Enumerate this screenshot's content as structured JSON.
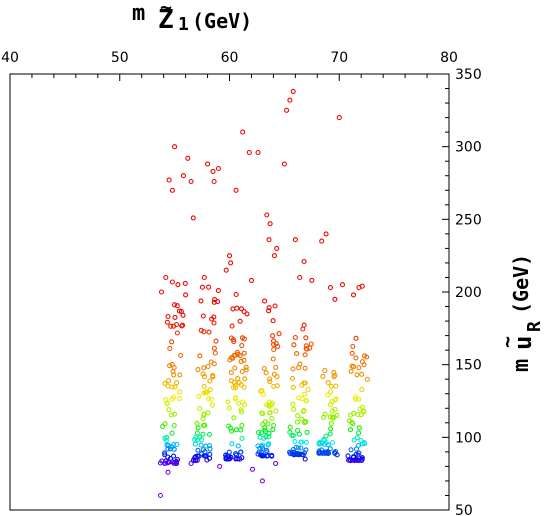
{
  "chart_data": {
    "type": "scatter",
    "title": "",
    "xlabel": {
      "base": "m",
      "symbol": "Z",
      "subscript": "1",
      "unit": "(GeV)"
    },
    "ylabel": {
      "base": "m",
      "symbol": "u",
      "subscript": "R",
      "unit": "(GeV)"
    },
    "xlim": [
      40,
      80
    ],
    "ylim": [
      50,
      350
    ],
    "x_ticks": [
      "40",
      "50",
      "60",
      "70",
      "80"
    ],
    "y_ticks": [
      "50",
      "100",
      "150",
      "200",
      "250",
      "300",
      "350"
    ],
    "x_axis_position": "top",
    "y_axis_position": "right",
    "grid": false,
    "legend": "none",
    "marker": "open-circle",
    "color_scale": "rainbow by y: violet (low) to red (high)",
    "band_centers_x": [
      54.5,
      57.5,
      60.5,
      63.5,
      66.5,
      69.0,
      71.5
    ],
    "points": [
      [
        53.7,
        60
      ],
      [
        63.0,
        70
      ],
      [
        54.5,
        277
      ],
      [
        54.8,
        270
      ],
      [
        55.0,
        300
      ],
      [
        55.8,
        280
      ],
      [
        56.2,
        292
      ],
      [
        56.5,
        276
      ],
      [
        56.7,
        251
      ],
      [
        58.0,
        288
      ],
      [
        58.5,
        283
      ],
      [
        58.6,
        276
      ],
      [
        59.0,
        285
      ],
      [
        60.1,
        220
      ],
      [
        60.6,
        270
      ],
      [
        61.2,
        310
      ],
      [
        61.8,
        296
      ],
      [
        62.6,
        296
      ],
      [
        63.4,
        253
      ],
      [
        63.6,
        236
      ],
      [
        63.7,
        247
      ],
      [
        64.1,
        225
      ],
      [
        64.3,
        230
      ],
      [
        65.0,
        288
      ],
      [
        65.2,
        325
      ],
      [
        65.5,
        332
      ],
      [
        65.8,
        338
      ],
      [
        66.0,
        236
      ],
      [
        66.4,
        210
      ],
      [
        66.8,
        221
      ],
      [
        67.5,
        208
      ],
      [
        68.4,
        235
      ],
      [
        68.8,
        240
      ],
      [
        69.2,
        203
      ],
      [
        69.6,
        195
      ],
      [
        70.0,
        320
      ],
      [
        70.3,
        205
      ],
      [
        71.3,
        198
      ],
      [
        71.8,
        203
      ],
      [
        72.1,
        204
      ],
      [
        62.0,
        208
      ],
      [
        59.7,
        215
      ],
      [
        57.7,
        210
      ],
      [
        60.0,
        225
      ],
      [
        55.3,
        205
      ],
      [
        54.2,
        210
      ],
      [
        53.8,
        200
      ],
      [
        56.0,
        198
      ],
      [
        54.4,
        76
      ],
      [
        56.5,
        82
      ],
      [
        59.1,
        80
      ],
      [
        62.1,
        78
      ],
      [
        64.2,
        82
      ],
      [
        66.9,
        85
      ],
      [
        69.8,
        88
      ],
      [
        72.1,
        86
      ]
    ],
    "clusters": [
      {
        "x": 54.5,
        "ymin": 82,
        "ymax": 208,
        "n": 80
      },
      {
        "x": 57.5,
        "ymin": 84,
        "ymax": 205,
        "n": 80
      },
      {
        "x": 60.4,
        "ymin": 85,
        "ymax": 200,
        "n": 80
      },
      {
        "x": 63.3,
        "ymin": 87,
        "ymax": 195,
        "n": 75
      },
      {
        "x": 66.2,
        "ymin": 88,
        "ymax": 178,
        "n": 70
      },
      {
        "x": 68.9,
        "ymin": 89,
        "ymax": 150,
        "n": 60
      },
      {
        "x": 71.5,
        "ymin": 84,
        "ymax": 172,
        "n": 60
      }
    ]
  }
}
